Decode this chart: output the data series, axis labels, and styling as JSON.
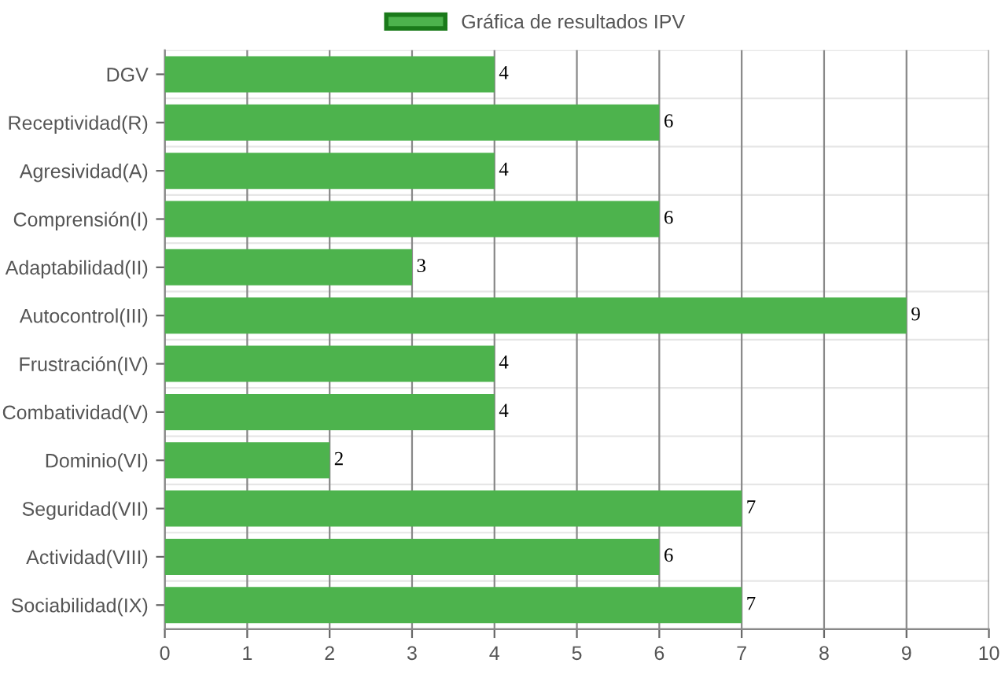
{
  "chart_data": {
    "type": "bar",
    "orientation": "horizontal",
    "categories": [
      "DGV",
      "Receptividad(R)",
      "Agresividad(A)",
      "Comprensión(I)",
      "Adaptabilidad(II)",
      "Autocontrol(III)",
      "Frustración(IV)",
      "Combatividad(V)",
      "Dominio(VI)",
      "Seguridad(VII)",
      "Actividad(VIII)",
      "Sociabilidad(IX)"
    ],
    "series": [
      {
        "name": "Gráfica de resultados IPV",
        "color": "#4db34d",
        "values": [
          4,
          6,
          4,
          6,
          3,
          9,
          4,
          4,
          2,
          7,
          6,
          7
        ]
      }
    ],
    "xlim": [
      0,
      10
    ],
    "xticks": [
      0,
      1,
      2,
      3,
      4,
      5,
      6,
      7,
      8,
      9,
      10
    ],
    "grid": true,
    "legend": "top",
    "data_labels": true
  }
}
